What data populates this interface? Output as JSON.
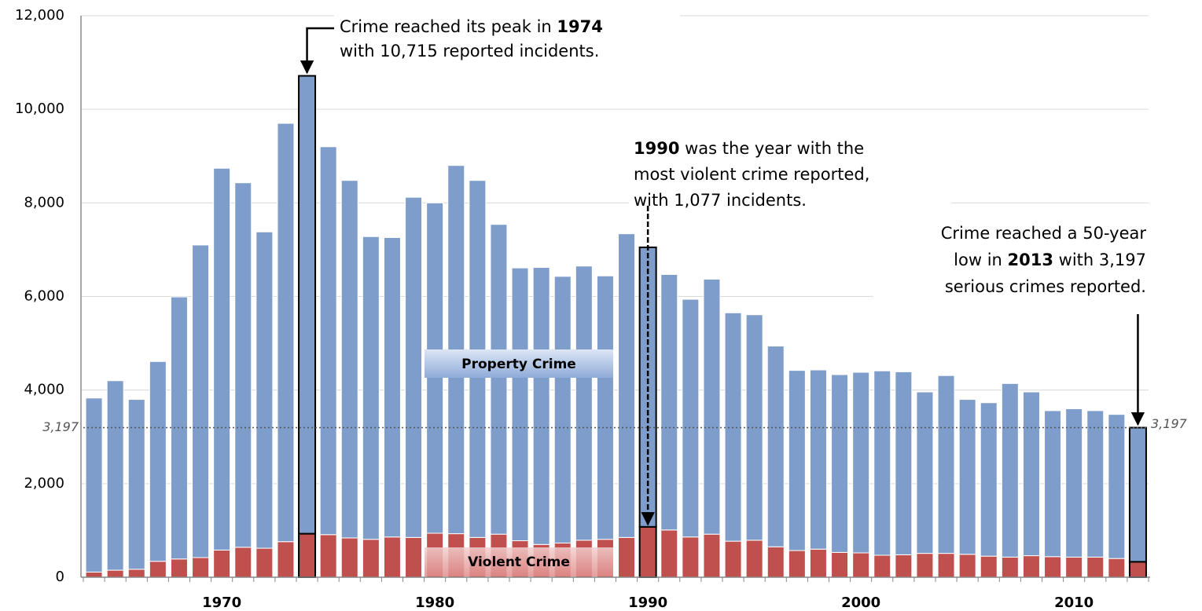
{
  "chart_data": {
    "type": "stacked_bar",
    "categories": [
      null,
      null,
      null,
      null,
      null,
      null,
      "1970",
      null,
      null,
      null,
      null,
      null,
      null,
      null,
      null,
      null,
      "1980",
      null,
      null,
      null,
      null,
      null,
      null,
      null,
      null,
      null,
      "1990",
      null,
      null,
      null,
      null,
      null,
      null,
      null,
      null,
      null,
      "2000",
      null,
      null,
      null,
      null,
      null,
      null,
      null,
      null,
      null,
      "2010",
      null,
      null,
      null
    ],
    "series": [
      {
        "name": "Violent Crime",
        "color": "#c0504d",
        "values": [
          110,
          150,
          170,
          340,
          390,
          420,
          580,
          640,
          620,
          760,
          930,
          910,
          840,
          810,
          860,
          850,
          940,
          930,
          850,
          920,
          780,
          700,
          730,
          790,
          810,
          850,
          1077,
          1010,
          860,
          920,
          770,
          790,
          650,
          570,
          600,
          530,
          520,
          470,
          480,
          510,
          510,
          490,
          450,
          430,
          460,
          440,
          430,
          430,
          400,
          330
        ]
      },
      {
        "name": "Property Crime",
        "color": "#7f9dcb",
        "values": [
          3720,
          4050,
          3630,
          4270,
          5600,
          6680,
          8160,
          7790,
          6760,
          8940,
          9785,
          8290,
          7640,
          6470,
          6400,
          7270,
          7060,
          7870,
          7630,
          6620,
          5830,
          5920,
          5700,
          5860,
          5630,
          6490,
          5973,
          5460,
          5080,
          5450,
          4880,
          4820,
          4290,
          3850,
          3830,
          3800,
          3860,
          3940,
          3910,
          3450,
          3800,
          3310,
          3280,
          3710,
          3500,
          3120,
          3170,
          3130,
          3080,
          2867
        ]
      }
    ],
    "ylim": [
      0,
      12000
    ],
    "yticks": [
      0,
      {
        "value": 2000,
        "label": "2,000"
      },
      {
        "value": 4000,
        "label": "4,000"
      },
      {
        "value": 6000,
        "label": "6,000"
      },
      {
        "value": 8000,
        "label": "8,000"
      },
      {
        "value": 10000,
        "label": "10,000"
      },
      {
        "value": 12000,
        "label": "12,000"
      }
    ],
    "grid": true,
    "highlight": [
      10,
      26,
      49
    ],
    "reference_line": {
      "value": 3197,
      "label": "3,197"
    },
    "annotations": [
      {
        "lines": [
          [
            {
              "text": "Crime reached its peak in ",
              "bold": false
            },
            {
              "text": "1974",
              "bold": true
            }
          ],
          [
            {
              "text": "with 10,715 reported incidents.",
              "bold": false
            }
          ]
        ]
      },
      {
        "lines": [
          [
            {
              "text": "1990",
              "bold": true
            },
            {
              "text": " was the year with the",
              "bold": false
            }
          ],
          [
            {
              "text": "most violent crime reported,",
              "bold": false
            }
          ],
          [
            {
              "text": "with 1,077 incidents.",
              "bold": false
            }
          ]
        ]
      },
      {
        "lines": [
          [
            {
              "text": "Crime reached a 50-year",
              "bold": false
            }
          ],
          [
            {
              "text": "low in ",
              "bold": false
            },
            {
              "text": "2013",
              "bold": true
            },
            {
              "text": " with 3,197",
              "bold": false
            }
          ],
          [
            {
              "text": "serious crimes reported.",
              "bold": false
            }
          ]
        ]
      }
    ]
  }
}
